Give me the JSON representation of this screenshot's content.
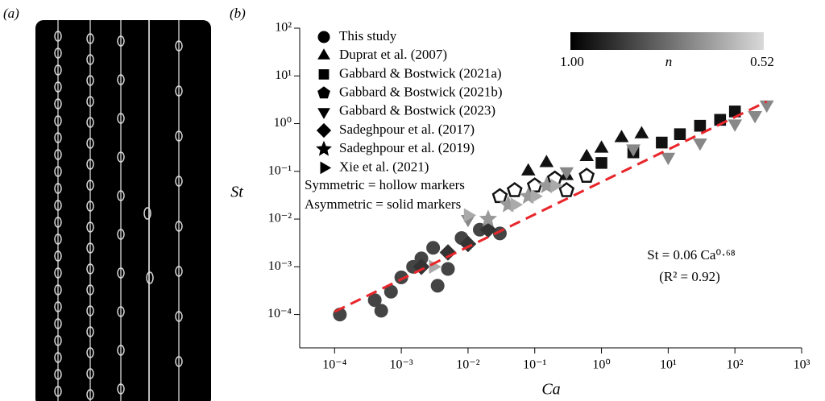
{
  "panel_a": {
    "label": "(a)"
  },
  "chart_data": {
    "type": "scatter",
    "panel_label": "(b)",
    "x_label": "Ca",
    "y_label": "St",
    "xscale": "log",
    "yscale": "log",
    "xlim": [
      3e-05,
      1000
    ],
    "ylim": [
      2e-05,
      100
    ],
    "xticks": [
      {
        "value": 0.0001,
        "label": "10⁻⁴"
      },
      {
        "value": 0.001,
        "label": "10⁻³"
      },
      {
        "value": 0.01,
        "label": "10⁻²"
      },
      {
        "value": 0.1,
        "label": "10⁻¹"
      },
      {
        "value": 1,
        "label": "10⁰"
      },
      {
        "value": 10,
        "label": "10¹"
      },
      {
        "value": 100,
        "label": "10²"
      },
      {
        "value": 1000,
        "label": "10³"
      }
    ],
    "yticks": [
      {
        "value": 0.0001,
        "label": "10⁻⁴"
      },
      {
        "value": 0.001,
        "label": "10⁻³"
      },
      {
        "value": 0.01,
        "label": "10⁻²"
      },
      {
        "value": 0.1,
        "label": "10⁻¹"
      },
      {
        "value": 1,
        "label": "10⁰"
      },
      {
        "value": 10,
        "label": "10¹"
      },
      {
        "value": 100,
        "label": "10²"
      }
    ],
    "series": [
      {
        "name": "This study",
        "marker": "circle",
        "filled": true,
        "color": "#444444",
        "x": [
          0.00012,
          0.0004,
          0.0005,
          0.0007,
          0.001,
          0.0015,
          0.002,
          0.003,
          0.0035,
          0.005,
          0.008,
          0.015,
          0.03
        ],
        "values": [
          0.0001,
          0.0002,
          0.00012,
          0.0003,
          0.0006,
          0.001,
          0.0015,
          0.0025,
          0.0004,
          0.0009,
          0.004,
          0.006,
          0.005
        ]
      },
      {
        "name": "Duprat et al. (2007)",
        "marker": "triangle-up",
        "filled": true,
        "color": "#111111",
        "x": [
          0.08,
          0.15,
          0.3,
          0.6,
          1,
          2,
          4
        ],
        "values": [
          0.1,
          0.15,
          0.08,
          0.2,
          0.3,
          0.5,
          0.6
        ]
      },
      {
        "name": "Gabbard & Bostwick (2021a)",
        "marker": "square",
        "filled": true,
        "color": "#111111",
        "x": [
          1,
          3,
          8,
          15,
          30,
          60,
          100
        ],
        "values": [
          0.15,
          0.25,
          0.4,
          0.6,
          0.9,
          1.2,
          1.8
        ]
      },
      {
        "name": "Gabbard & Bostwick (2021b)",
        "marker": "pentagon",
        "filled": false,
        "color": "#111111",
        "x": [
          0.03,
          0.05,
          0.1,
          0.2,
          0.3,
          0.6
        ],
        "values": [
          0.03,
          0.04,
          0.05,
          0.07,
          0.04,
          0.08
        ]
      },
      {
        "name": "Gabbard & Bostwick (2023)",
        "marker": "triangle-down",
        "filled": true,
        "color": "#888888",
        "x": [
          0.01,
          0.3,
          3,
          10,
          30,
          100,
          200,
          300
        ],
        "values": [
          0.01,
          0.1,
          0.3,
          0.2,
          0.4,
          1,
          1.5,
          2.5
        ]
      },
      {
        "name": "Sadeghpour et al. (2017)",
        "marker": "diamond",
        "filled": true,
        "color": "#333333",
        "x": [
          0.002,
          0.005,
          0.01,
          0.02
        ],
        "values": [
          0.001,
          0.002,
          0.003,
          0.006
        ]
      },
      {
        "name": "Sadeghpour et al. (2019)",
        "marker": "star",
        "filled": true,
        "color": "#999999",
        "x": [
          0.02,
          0.04,
          0.08,
          0.15
        ],
        "values": [
          0.01,
          0.02,
          0.03,
          0.05
        ]
      },
      {
        "name": "Xie et al. (2021)",
        "marker": "triangle-right",
        "filled": true,
        "color": "#aaaaaa",
        "x": [
          0.003,
          0.01,
          0.05,
          0.1,
          0.2
        ],
        "values": [
          0.001,
          0.012,
          0.02,
          0.03,
          0.05
        ]
      }
    ],
    "notes": [
      "Symmetric = hollow markers",
      "Asymmetric = solid markers"
    ],
    "colorbar": {
      "label": "n",
      "ticks": [
        "1.00",
        "0.52"
      ],
      "colors": [
        "#000000",
        "#d9d9d9"
      ]
    },
    "fit": {
      "coefficient": 0.06,
      "exponent": 0.68,
      "xrange": [
        0.0001,
        300
      ],
      "color": "#e8262b",
      "label": "St = 0.06 Ca⁰·⁶⁸",
      "r2_label": "(R² = 0.92)"
    }
  }
}
